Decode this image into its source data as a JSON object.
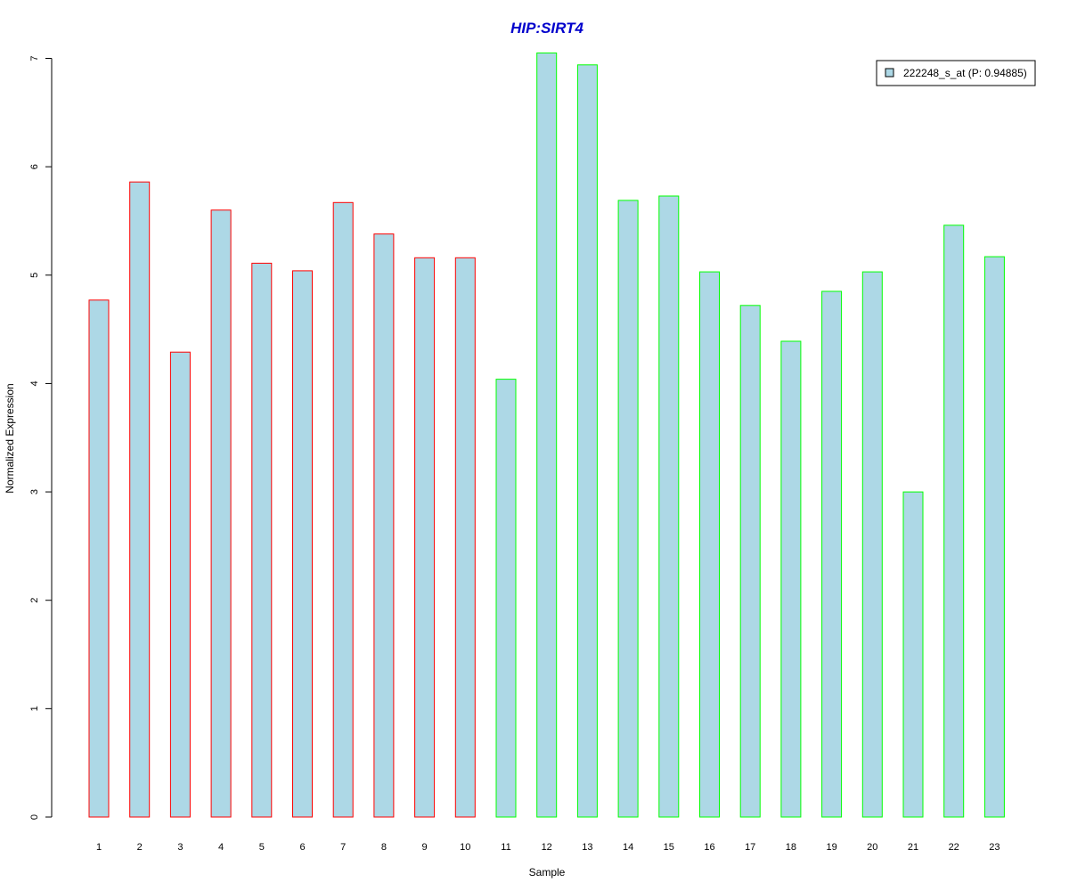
{
  "chart_data": {
    "type": "bar",
    "title": "HIP:SIRT4",
    "xlabel": "Sample",
    "ylabel": "Normalized Expression",
    "categories": [
      "1",
      "2",
      "3",
      "4",
      "5",
      "6",
      "7",
      "8",
      "9",
      "10",
      "11",
      "12",
      "13",
      "14",
      "15",
      "16",
      "17",
      "18",
      "19",
      "20",
      "21",
      "22",
      "23"
    ],
    "series": [
      {
        "name": "222248_s_at (P: 0.94885)",
        "values": [
          4.77,
          5.86,
          4.29,
          5.6,
          5.11,
          5.04,
          5.67,
          5.38,
          5.16,
          5.16,
          4.04,
          7.05,
          6.94,
          5.69,
          5.73,
          5.03,
          4.72,
          4.39,
          4.85,
          5.03,
          3.0,
          5.46,
          5.17
        ],
        "fill_color": "#add8e6",
        "border_colors": [
          "#ff0000",
          "#ff0000",
          "#ff0000",
          "#ff0000",
          "#ff0000",
          "#ff0000",
          "#ff0000",
          "#ff0000",
          "#ff0000",
          "#ff0000",
          "#00ff00",
          "#00ff00",
          "#00ff00",
          "#00ff00",
          "#00ff00",
          "#00ff00",
          "#00ff00",
          "#00ff00",
          "#00ff00",
          "#00ff00",
          "#00ff00",
          "#00ff00",
          "#00ff00"
        ]
      }
    ],
    "ylim": [
      0,
      7
    ],
    "yticks": [
      0,
      1,
      2,
      3,
      4,
      5,
      6,
      7
    ],
    "grid": false,
    "legend_position": "top-right",
    "title_color": "#0000cc"
  }
}
